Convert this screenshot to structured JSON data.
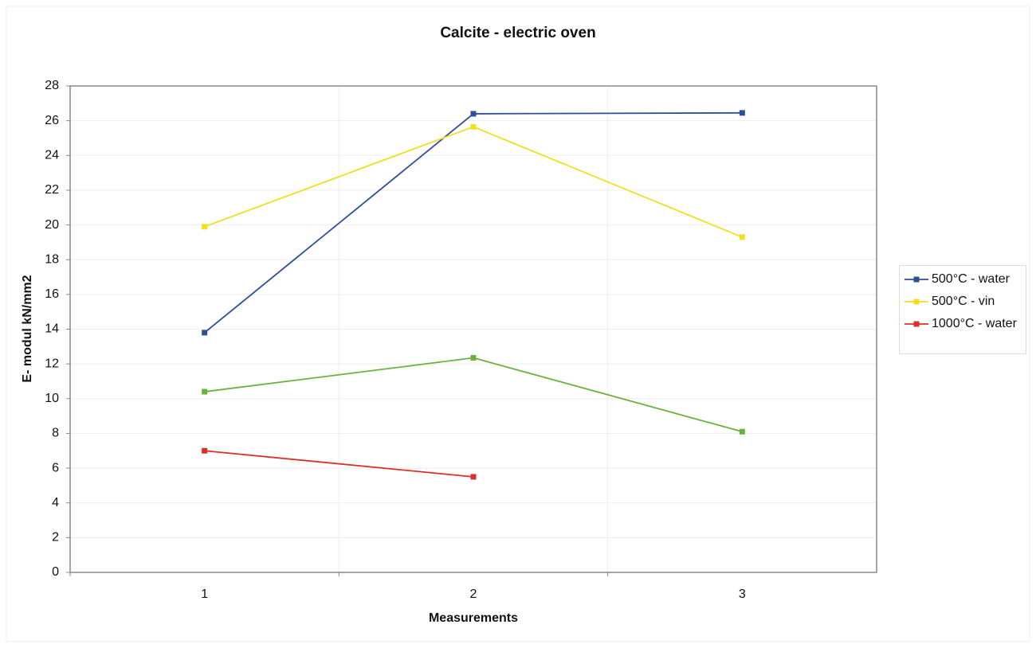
{
  "chart_data": {
    "type": "line",
    "title": "Calcite - electric oven",
    "x_label": "Measurements",
    "y_label": "E- modul kN/mm2",
    "categories": [
      "1",
      "2",
      "3"
    ],
    "series": [
      {
        "name": "500°C - water",
        "color": "#2e4d9b",
        "values": [
          13.8,
          26.4,
          26.45
        ]
      },
      {
        "name": "500°C - vin",
        "color": "#f0e020",
        "values": [
          19.9,
          25.65,
          19.3
        ]
      },
      {
        "name": "1000°C - water",
        "color": "#d9302a",
        "values": [
          7.0,
          5.5,
          null
        ]
      },
      {
        "color": "#6ab23a",
        "values": [
          10.4,
          12.35,
          8.1
        ]
      }
    ],
    "ylim": [
      0,
      28
    ],
    "yticks": [
      0,
      2,
      4,
      6,
      8,
      10,
      12,
      14,
      16,
      18,
      20,
      22,
      24,
      26,
      28
    ],
    "grid": true,
    "legend": "right"
  }
}
